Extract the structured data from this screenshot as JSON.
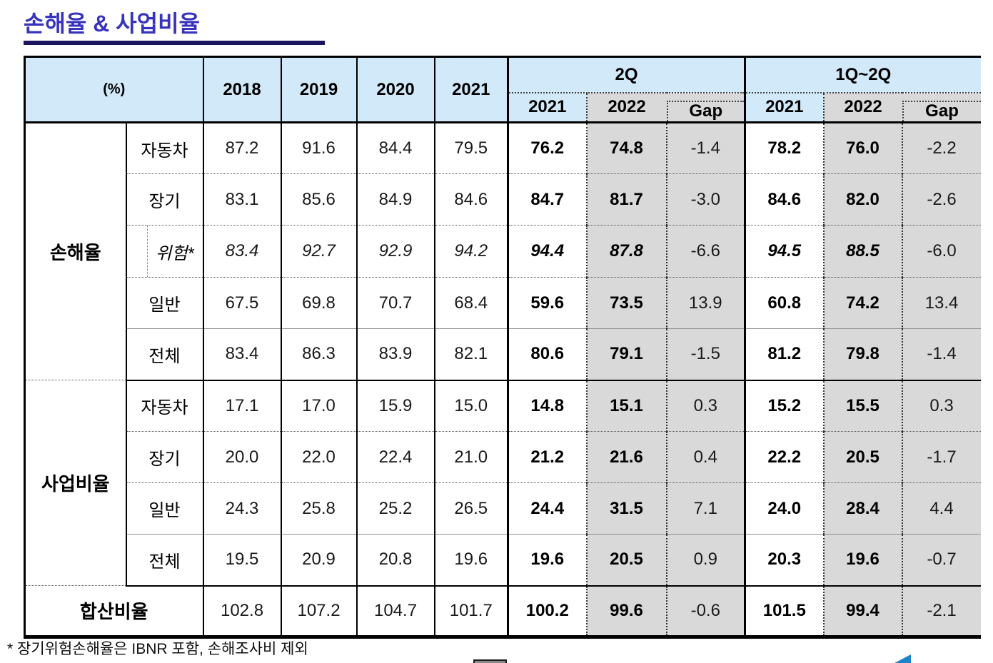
{
  "title": "손해율 & 사업비율",
  "table": {
    "unit": "(%)",
    "years": [
      "2018",
      "2019",
      "2020",
      "2021"
    ],
    "q2": {
      "label": "2Q",
      "sub": [
        "2021",
        "2022",
        "Gap"
      ]
    },
    "half": {
      "label": "1Q~2Q",
      "sub": [
        "2021",
        "2022",
        "Gap"
      ]
    },
    "sections": [
      {
        "label": "손해율",
        "rows": [
          {
            "label": "자동차",
            "v": [
              "87.2",
              "91.6",
              "84.4",
              "79.5",
              "76.2",
              "74.8",
              "-1.4",
              "78.2",
              "76.0",
              "-2.2"
            ]
          },
          {
            "label": "장기",
            "v": [
              "83.1",
              "85.6",
              "84.9",
              "84.6",
              "84.7",
              "81.7",
              "-3.0",
              "84.6",
              "82.0",
              "-2.6"
            ]
          },
          {
            "label": "위험*",
            "v": [
              "83.4",
              "92.7",
              "92.9",
              "94.2",
              "94.4",
              "87.8",
              "-6.6",
              "94.5",
              "88.5",
              "-6.0"
            ]
          },
          {
            "label": "일반",
            "v": [
              "67.5",
              "69.8",
              "70.7",
              "68.4",
              "59.6",
              "73.5",
              "13.9",
              "60.8",
              "74.2",
              "13.4"
            ]
          },
          {
            "label": "전체",
            "v": [
              "83.4",
              "86.3",
              "83.9",
              "82.1",
              "80.6",
              "79.1",
              "-1.5",
              "81.2",
              "79.8",
              "-1.4"
            ]
          }
        ]
      },
      {
        "label": "사업비율",
        "rows": [
          {
            "label": "자동차",
            "v": [
              "17.1",
              "17.0",
              "15.9",
              "15.0",
              "14.8",
              "15.1",
              "0.3",
              "15.2",
              "15.5",
              "0.3"
            ]
          },
          {
            "label": "장기",
            "v": [
              "20.0",
              "22.0",
              "22.4",
              "21.0",
              "21.2",
              "21.6",
              "0.4",
              "22.2",
              "20.5",
              "-1.7"
            ]
          },
          {
            "label": "일반",
            "v": [
              "24.3",
              "25.8",
              "25.2",
              "26.5",
              "24.4",
              "31.5",
              "7.1",
              "24.0",
              "28.4",
              "4.4"
            ]
          },
          {
            "label": "전체",
            "v": [
              "19.5",
              "20.9",
              "20.8",
              "19.6",
              "19.6",
              "20.5",
              "0.9",
              "20.3",
              "19.6",
              "-0.7"
            ]
          }
        ]
      }
    ],
    "total": {
      "label": "합산비율",
      "v": [
        "102.8",
        "107.2",
        "104.7",
        "101.7",
        "100.2",
        "99.6",
        "-0.6",
        "101.5",
        "99.4",
        "-2.1"
      ]
    }
  },
  "footnote": "* 장기위험손해율은 IBNR 포함, 손해조사비 제외",
  "colors": {
    "header_blue": "#d2e9f9",
    "shade_gray": "#d9d9d9",
    "title_blue": "#3733bb",
    "underline_navy": "#1b1560",
    "logo_blue": "#1e82c8"
  }
}
